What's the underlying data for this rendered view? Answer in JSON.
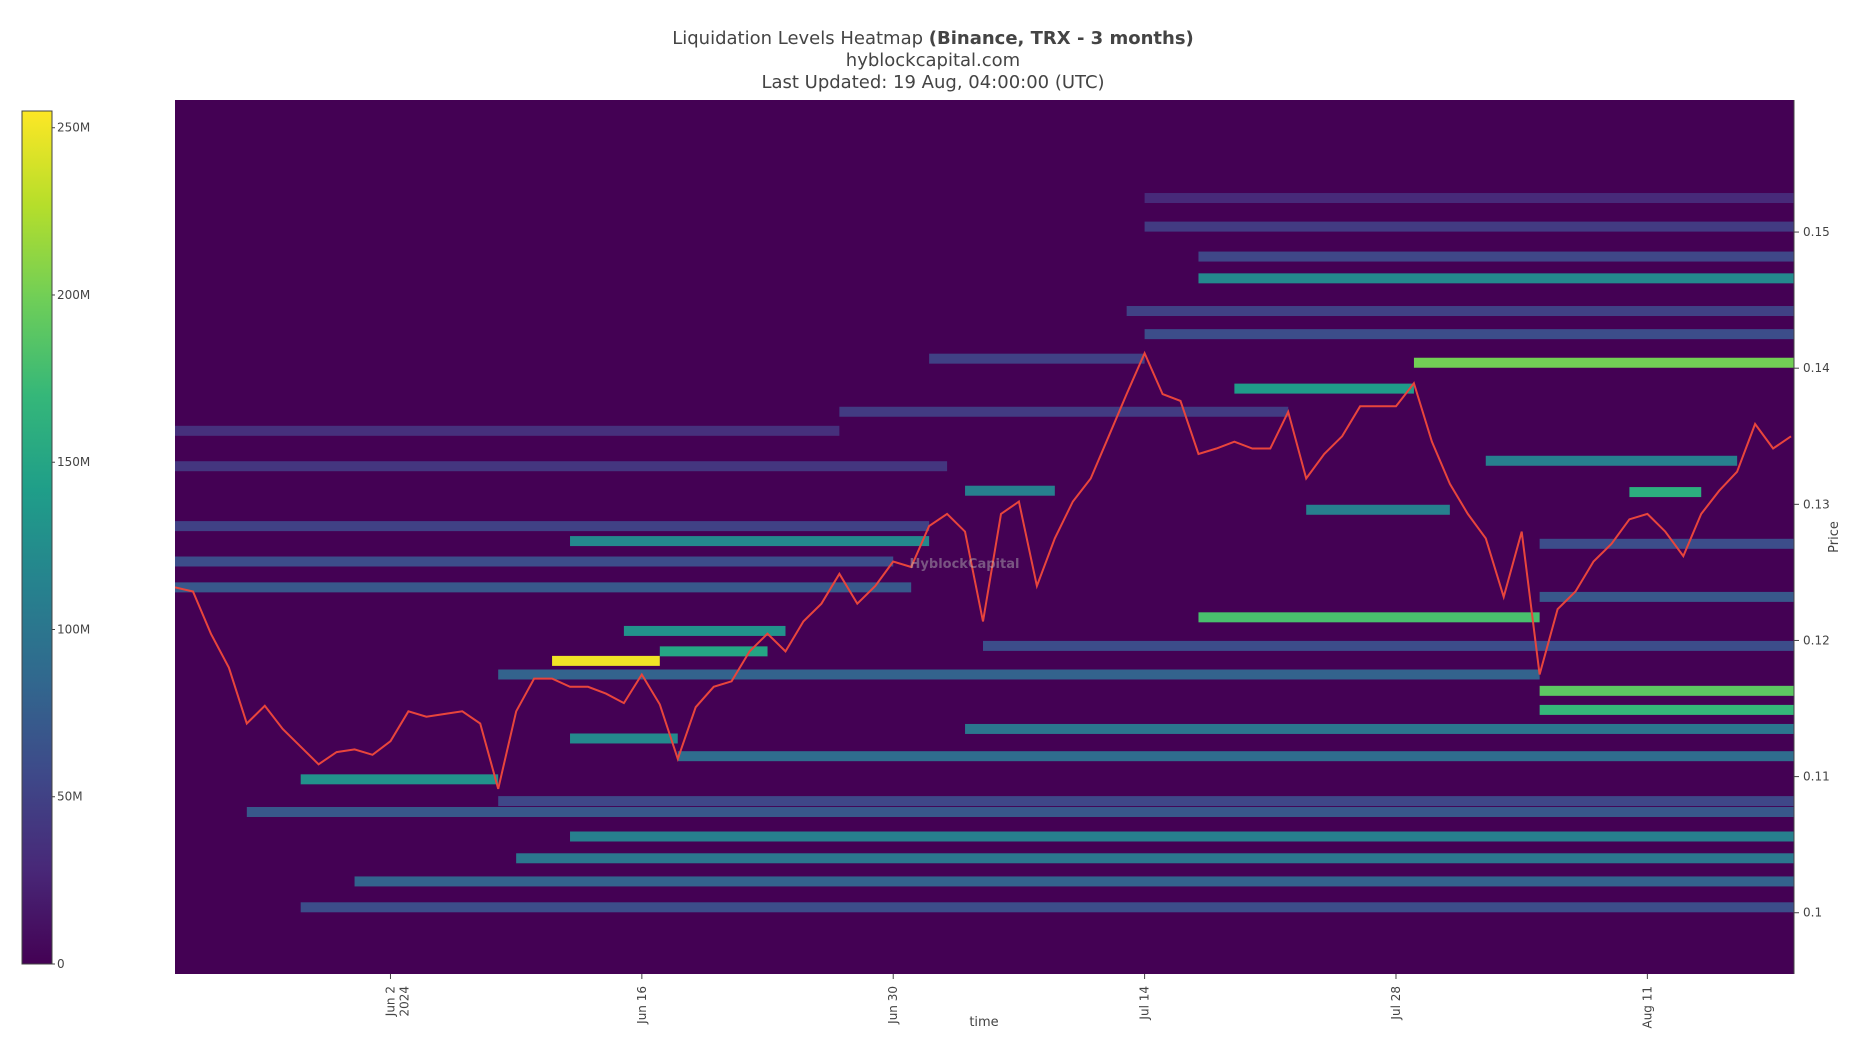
{
  "chart_data": {
    "type": "heatmap",
    "title": "Liquidation Levels Heatmap",
    "title_bold": "(Binance, TRX - 3 months)",
    "subtitle": "hyblockcapital.com",
    "updated": "Last Updated: 19 Aug, 04:00:00 (UTC)",
    "watermark": "HyblockCapital",
    "xlabel": "time",
    "ylabel": "Price",
    "xlim": [
      "2024-05-21",
      "2024-08-19T04:00Z"
    ],
    "xticks": [
      {
        "value": "2024-06-02",
        "label": "Jun 2"
      },
      {
        "value": "2024-06-16",
        "label": "Jun 16"
      },
      {
        "value": "2024-06-30",
        "label": "Jun 30"
      },
      {
        "value": "2024-07-14",
        "label": "Jul 14"
      },
      {
        "value": "2024-07-28",
        "label": "Jul 28"
      },
      {
        "value": "2024-08-11",
        "label": "Aug 11"
      }
    ],
    "x_year_label": "2024",
    "ylim": [
      0.0955,
      0.1597
    ],
    "yticks": [
      0.1,
      0.11,
      0.12,
      0.13,
      0.14,
      0.15
    ],
    "colorscale": "Viridis",
    "zlim": [
      0,
      255000000
    ],
    "zticks": [
      {
        "value": 0,
        "label": "0"
      },
      {
        "value": 50000000,
        "label": "50M"
      },
      {
        "value": 100000000,
        "label": "100M"
      },
      {
        "value": 150000000,
        "label": "150M"
      },
      {
        "value": 200000000,
        "label": "200M"
      },
      {
        "value": 250000000,
        "label": "250M"
      }
    ],
    "levels": [
      {
        "price": 0.1404,
        "start": "2024-07-29",
        "end": "2024-08-19T04:00Z",
        "value": 200000000
      },
      {
        "price": 0.1466,
        "start": "2024-07-17",
        "end": "2024-08-19T04:00Z",
        "value": 120000000
      },
      {
        "price": 0.1163,
        "start": "2024-08-05",
        "end": "2024-08-19T04:00Z",
        "value": 190000000
      },
      {
        "price": 0.1149,
        "start": "2024-08-05",
        "end": "2024-08-19T04:00Z",
        "value": 170000000
      },
      {
        "price": 0.1217,
        "start": "2024-07-17",
        "end": "2024-08-05",
        "value": 180000000
      },
      {
        "price": 0.1385,
        "start": "2024-07-19",
        "end": "2024-07-29",
        "value": 140000000
      },
      {
        "price": 0.1309,
        "start": "2024-08-10",
        "end": "2024-08-14",
        "value": 160000000
      },
      {
        "price": 0.1185,
        "start": "2024-06-11",
        "end": "2024-06-17",
        "value": 250000000
      },
      {
        "price": 0.1192,
        "start": "2024-06-17",
        "end": "2024-06-23",
        "value": 150000000
      },
      {
        "price": 0.1207,
        "start": "2024-06-15",
        "end": "2024-06-24",
        "value": 130000000
      },
      {
        "price": 0.1273,
        "start": "2024-06-12",
        "end": "2024-07-02",
        "value": 120000000
      },
      {
        "price": 0.1098,
        "start": "2024-05-28",
        "end": "2024-06-08",
        "value": 130000000
      },
      {
        "price": 0.1128,
        "start": "2024-06-12",
        "end": "2024-06-18",
        "value": 120000000
      },
      {
        "price": 0.1056,
        "start": "2024-06-12",
        "end": "2024-08-19T04:00Z",
        "value": 110000000
      },
      {
        "price": 0.104,
        "start": "2024-06-09",
        "end": "2024-08-19T04:00Z",
        "value": 100000000
      },
      {
        "price": 0.1023,
        "start": "2024-05-31",
        "end": "2024-08-19T04:00Z",
        "value": 80000000
      },
      {
        "price": 0.1004,
        "start": "2024-05-28",
        "end": "2024-08-19T04:00Z",
        "value": 60000000
      },
      {
        "price": 0.1074,
        "start": "2024-05-25",
        "end": "2024-08-19T04:00Z",
        "value": 70000000
      },
      {
        "price": 0.1082,
        "start": "2024-06-08",
        "end": "2024-08-19T04:00Z",
        "value": 55000000
      },
      {
        "price": 0.1115,
        "start": "2024-06-18",
        "end": "2024-08-19T04:00Z",
        "value": 90000000
      },
      {
        "price": 0.1135,
        "start": "2024-07-04",
        "end": "2024-08-19T04:00Z",
        "value": 100000000
      },
      {
        "price": 0.1175,
        "start": "2024-06-08",
        "end": "2024-08-05",
        "value": 80000000
      },
      {
        "price": 0.1239,
        "start": "2024-05-21",
        "end": "2024-07-01",
        "value": 70000000
      },
      {
        "price": 0.1258,
        "start": "2024-05-21",
        "end": "2024-06-30",
        "value": 60000000
      },
      {
        "price": 0.131,
        "start": "2024-07-04",
        "end": "2024-07-09",
        "value": 110000000
      },
      {
        "price": 0.1296,
        "start": "2024-07-23",
        "end": "2024-07-31",
        "value": 110000000
      },
      {
        "price": 0.1332,
        "start": "2024-08-02",
        "end": "2024-08-16",
        "value": 110000000
      },
      {
        "price": 0.1425,
        "start": "2024-07-14",
        "end": "2024-08-19T04:00Z",
        "value": 60000000
      },
      {
        "price": 0.1442,
        "start": "2024-07-13",
        "end": "2024-08-19T04:00Z",
        "value": 50000000
      },
      {
        "price": 0.1482,
        "start": "2024-07-17",
        "end": "2024-08-19T04:00Z",
        "value": 55000000
      },
      {
        "price": 0.1504,
        "start": "2024-07-14",
        "end": "2024-08-19T04:00Z",
        "value": 45000000
      },
      {
        "price": 0.1525,
        "start": "2024-07-14",
        "end": "2024-08-19T04:00Z",
        "value": 30000000
      },
      {
        "price": 0.1354,
        "start": "2024-05-21",
        "end": "2024-06-27",
        "value": 35000000
      },
      {
        "price": 0.1328,
        "start": "2024-05-21",
        "end": "2024-07-03",
        "value": 40000000
      },
      {
        "price": 0.1284,
        "start": "2024-05-21",
        "end": "2024-07-02",
        "value": 50000000
      },
      {
        "price": 0.1196,
        "start": "2024-07-05",
        "end": "2024-08-19T04:00Z",
        "value": 60000000
      },
      {
        "price": 0.1407,
        "start": "2024-07-02",
        "end": "2024-07-14",
        "value": 50000000
      },
      {
        "price": 0.1368,
        "start": "2024-06-27",
        "end": "2024-07-22",
        "value": 45000000
      },
      {
        "price": 0.1232,
        "start": "2024-08-05",
        "end": "2024-08-19T04:00Z",
        "value": 70000000
      },
      {
        "price": 0.1271,
        "start": "2024-08-05",
        "end": "2024-08-19T04:00Z",
        "value": 60000000
      }
    ],
    "price": {
      "color": "#e8453c",
      "x": [
        "2024-05-21",
        "2024-05-22",
        "2024-05-23",
        "2024-05-24",
        "2024-05-25",
        "2024-05-26",
        "2024-05-27",
        "2024-05-28",
        "2024-05-29",
        "2024-05-30",
        "2024-05-31",
        "2024-06-01",
        "2024-06-02",
        "2024-06-03",
        "2024-06-04",
        "2024-06-05",
        "2024-06-06",
        "2024-06-07",
        "2024-06-08",
        "2024-06-09",
        "2024-06-10",
        "2024-06-11",
        "2024-06-12",
        "2024-06-13",
        "2024-06-14",
        "2024-06-15",
        "2024-06-16",
        "2024-06-17",
        "2024-06-18",
        "2024-06-19",
        "2024-06-20",
        "2024-06-21",
        "2024-06-22",
        "2024-06-23",
        "2024-06-24",
        "2024-06-25",
        "2024-06-26",
        "2024-06-27",
        "2024-06-28",
        "2024-06-29",
        "2024-06-30",
        "2024-07-01",
        "2024-07-02",
        "2024-07-03",
        "2024-07-04",
        "2024-07-05",
        "2024-07-06",
        "2024-07-07",
        "2024-07-08",
        "2024-07-09",
        "2024-07-10",
        "2024-07-11",
        "2024-07-12",
        "2024-07-13",
        "2024-07-14",
        "2024-07-15",
        "2024-07-16",
        "2024-07-17",
        "2024-07-18",
        "2024-07-19",
        "2024-07-20",
        "2024-07-21",
        "2024-07-22",
        "2024-07-23",
        "2024-07-24",
        "2024-07-25",
        "2024-07-26",
        "2024-07-27",
        "2024-07-28",
        "2024-07-29",
        "2024-07-30",
        "2024-07-31",
        "2024-08-01",
        "2024-08-02",
        "2024-08-03",
        "2024-08-04",
        "2024-08-05",
        "2024-08-06",
        "2024-08-07",
        "2024-08-08",
        "2024-08-09",
        "2024-08-10",
        "2024-08-11",
        "2024-08-12",
        "2024-08-13",
        "2024-08-14",
        "2024-08-15",
        "2024-08-16",
        "2024-08-17",
        "2024-08-18",
        "2024-08-19"
      ],
      "values": [
        0.1239,
        0.1236,
        0.1205,
        0.118,
        0.1139,
        0.1152,
        0.1135,
        0.1122,
        0.1109,
        0.1118,
        0.112,
        0.1116,
        0.1126,
        0.1148,
        0.1144,
        0.1146,
        0.1148,
        0.1139,
        0.1091,
        0.1148,
        0.1172,
        0.1172,
        0.1166,
        0.1166,
        0.1161,
        0.1154,
        0.1175,
        0.1153,
        0.1113,
        0.1151,
        0.1166,
        0.117,
        0.1192,
        0.1205,
        0.1192,
        0.1214,
        0.1227,
        0.1249,
        0.1227,
        0.124,
        0.1258,
        0.1254,
        0.1284,
        0.1293,
        0.128,
        0.1214,
        0.1293,
        0.1302,
        0.124,
        0.1275,
        0.1302,
        0.1319,
        0.135,
        0.1381,
        0.1411,
        0.1381,
        0.1376,
        0.1337,
        0.1341,
        0.1346,
        0.1341,
        0.1341,
        0.1368,
        0.1319,
        0.1337,
        0.135,
        0.1372,
        0.1372,
        0.1372,
        0.1389,
        0.1346,
        0.1315,
        0.1293,
        0.1275,
        0.1232,
        0.128,
        0.1175,
        0.1223,
        0.1236,
        0.1258,
        0.1271,
        0.1289,
        0.1293,
        0.128,
        0.1262,
        0.1293,
        0.131,
        0.1324,
        0.1359,
        0.1341,
        0.135
      ]
    }
  }
}
